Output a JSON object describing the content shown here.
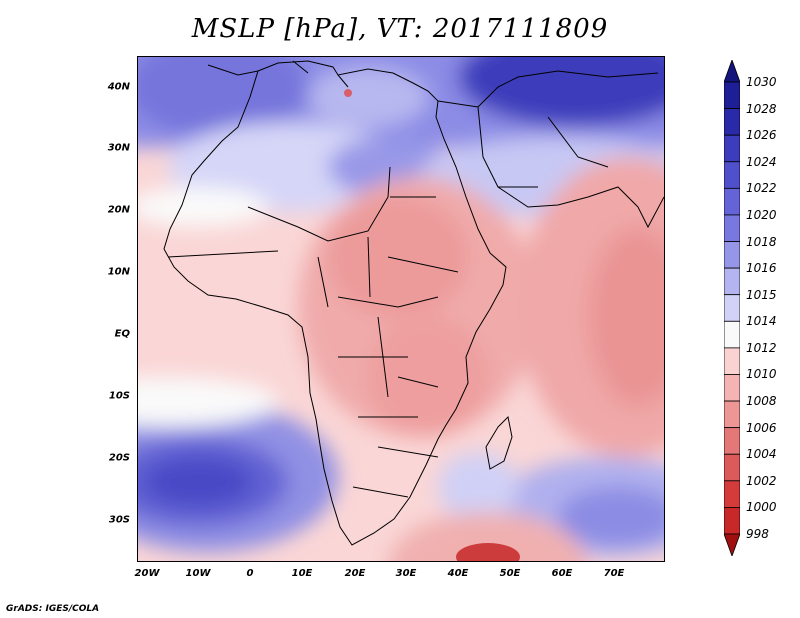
{
  "title": "MSLP [hPa], VT: 2017111809",
  "credit": "GrADS: IGES/COLA",
  "map": {
    "lon_range": [
      -25,
      80
    ],
    "lat_range": [
      -37,
      46
    ],
    "y_ticks": [
      {
        "lat": 40,
        "label": "40N"
      },
      {
        "lat": 30,
        "label": "30N"
      },
      {
        "lat": 20,
        "label": "20N"
      },
      {
        "lat": 10,
        "label": "10N"
      },
      {
        "lat": 0,
        "label": "EQ"
      },
      {
        "lat": -10,
        "label": "10S"
      },
      {
        "lat": -20,
        "label": "20S"
      },
      {
        "lat": -30,
        "label": "30S"
      }
    ],
    "x_ticks": [
      {
        "lon": -20,
        "label": "20W"
      },
      {
        "lon": -10,
        "label": "10W"
      },
      {
        "lon": 0,
        "label": "0"
      },
      {
        "lon": 10,
        "label": "10E"
      },
      {
        "lon": 20,
        "label": "20E"
      },
      {
        "lon": 30,
        "label": "30E"
      },
      {
        "lon": 40,
        "label": "40E"
      },
      {
        "lon": 50,
        "label": "50E"
      },
      {
        "lon": 60,
        "label": "60E"
      },
      {
        "lon": 70,
        "label": "70E"
      }
    ]
  },
  "colorbar": {
    "levels": [
      "1030",
      "1028",
      "1026",
      "1024",
      "1022",
      "1020",
      "1018",
      "1016",
      "1015",
      "1014",
      "1012",
      "1010",
      "1008",
      "1006",
      "1004",
      "1002",
      "1000",
      "998"
    ],
    "colors": [
      "#1e1e96",
      "#2a2aa8",
      "#3c3cbc",
      "#5050cc",
      "#6464d8",
      "#7878e0",
      "#9696e8",
      "#b4b4f0",
      "#d2d2f8",
      "#fafafa",
      "#fad2d2",
      "#f4b4b4",
      "#ec9696",
      "#e47878",
      "#dc5a5a",
      "#d43c3c",
      "#c82828",
      "#b41414"
    ],
    "top_color": "#14147d",
    "bottom_color": "#a01010"
  }
}
